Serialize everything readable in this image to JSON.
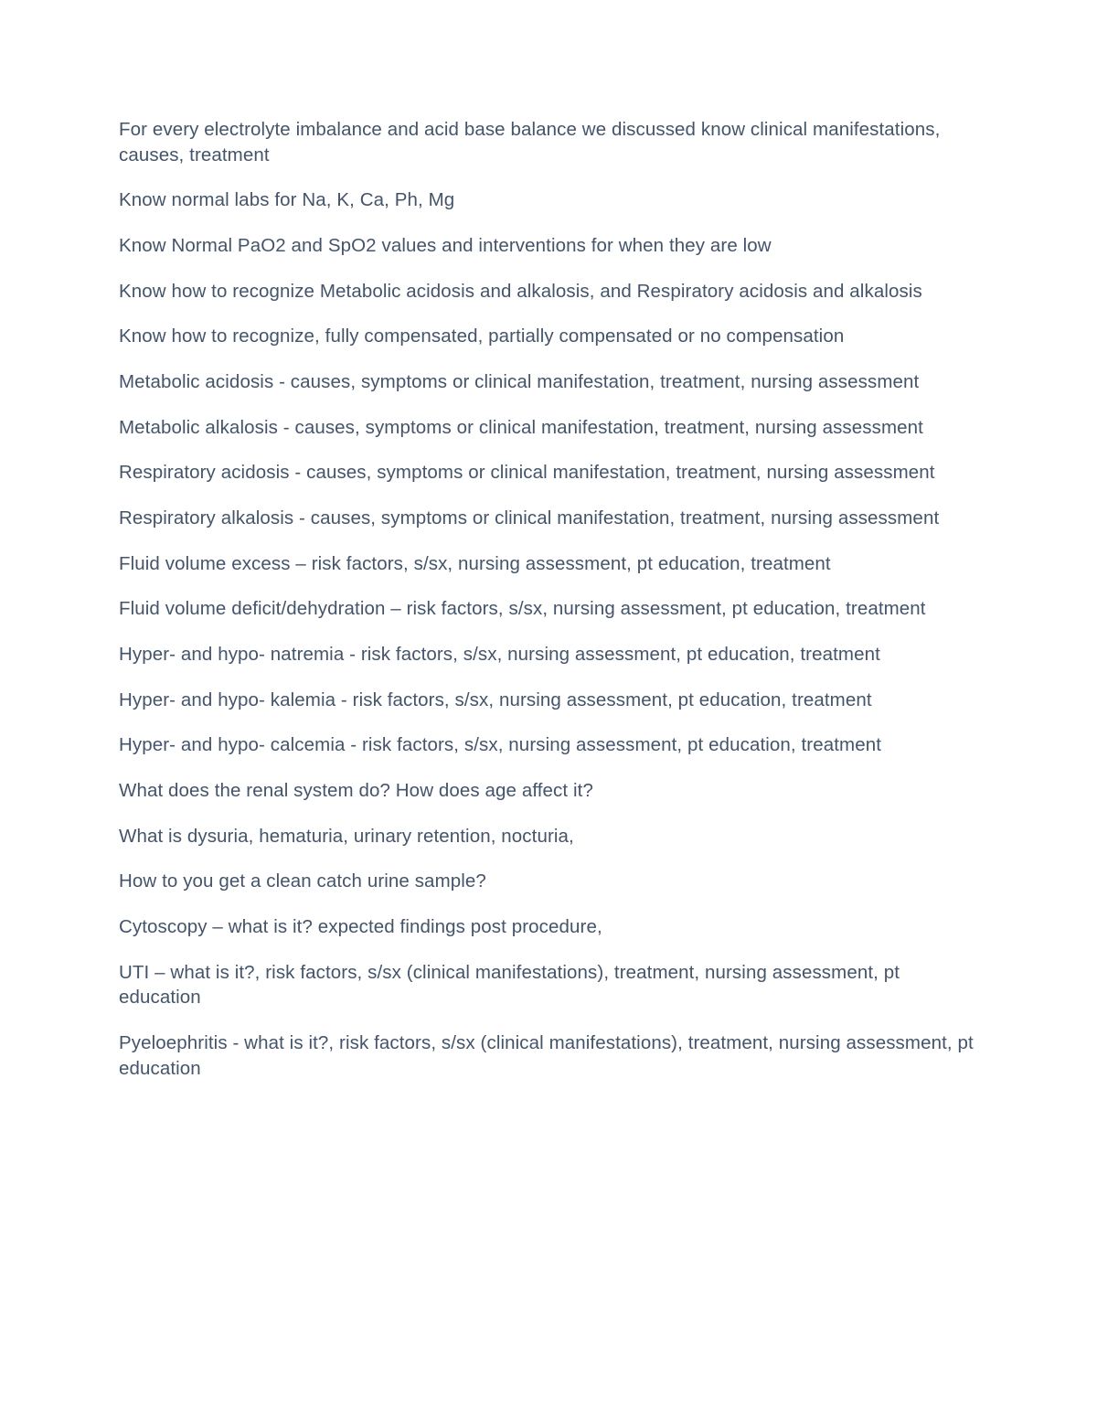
{
  "document": {
    "text_color": "#44546a",
    "background_color": "#ffffff",
    "font_size": 20.5,
    "paragraphs": [
      "For every electrolyte imbalance and acid base balance we discussed know clinical manifestations, causes, treatment",
      "Know normal labs for Na, K, Ca, Ph, Mg",
      "Know Normal PaO2 and SpO2 values and interventions for when they are low",
      "Know how to recognize Metabolic acidosis and alkalosis, and Respiratory acidosis and alkalosis",
      "Know how to recognize, fully compensated, partially compensated or no compensation",
      "Metabolic acidosis  - causes, symptoms or clinical manifestation, treatment, nursing assessment",
      "Metabolic alkalosis  - causes, symptoms or clinical manifestation, treatment, nursing assessment",
      "Respiratory acidosis  - causes, symptoms or clinical manifestation, treatment, nursing assessment",
      "Respiratory alkalosis  - causes, symptoms or clinical manifestation, treatment, nursing assessment",
      "Fluid volume excess – risk factors, s/sx, nursing assessment, pt education, treatment",
      "Fluid volume deficit/dehydration – risk factors, s/sx, nursing assessment, pt education, treatment",
      "Hyper- and hypo- natremia - risk factors, s/sx, nursing assessment, pt education, treatment",
      "Hyper- and hypo- kalemia - risk factors, s/sx, nursing assessment, pt education, treatment",
      "Hyper- and hypo- calcemia - risk factors, s/sx, nursing assessment, pt education, treatment",
      "What does the renal system do? How does age affect it?",
      "What is dysuria, hematuria, urinary retention, nocturia,",
      "How to you get a clean catch urine sample?",
      "Cytoscopy – what is it? expected findings post procedure,",
      "UTI – what is it?, risk factors, s/sx (clinical manifestations), treatment, nursing assessment, pt education",
      "Pyeloephritis - what is it?, risk factors, s/sx (clinical manifestations), treatment, nursing assessment, pt education"
    ]
  }
}
